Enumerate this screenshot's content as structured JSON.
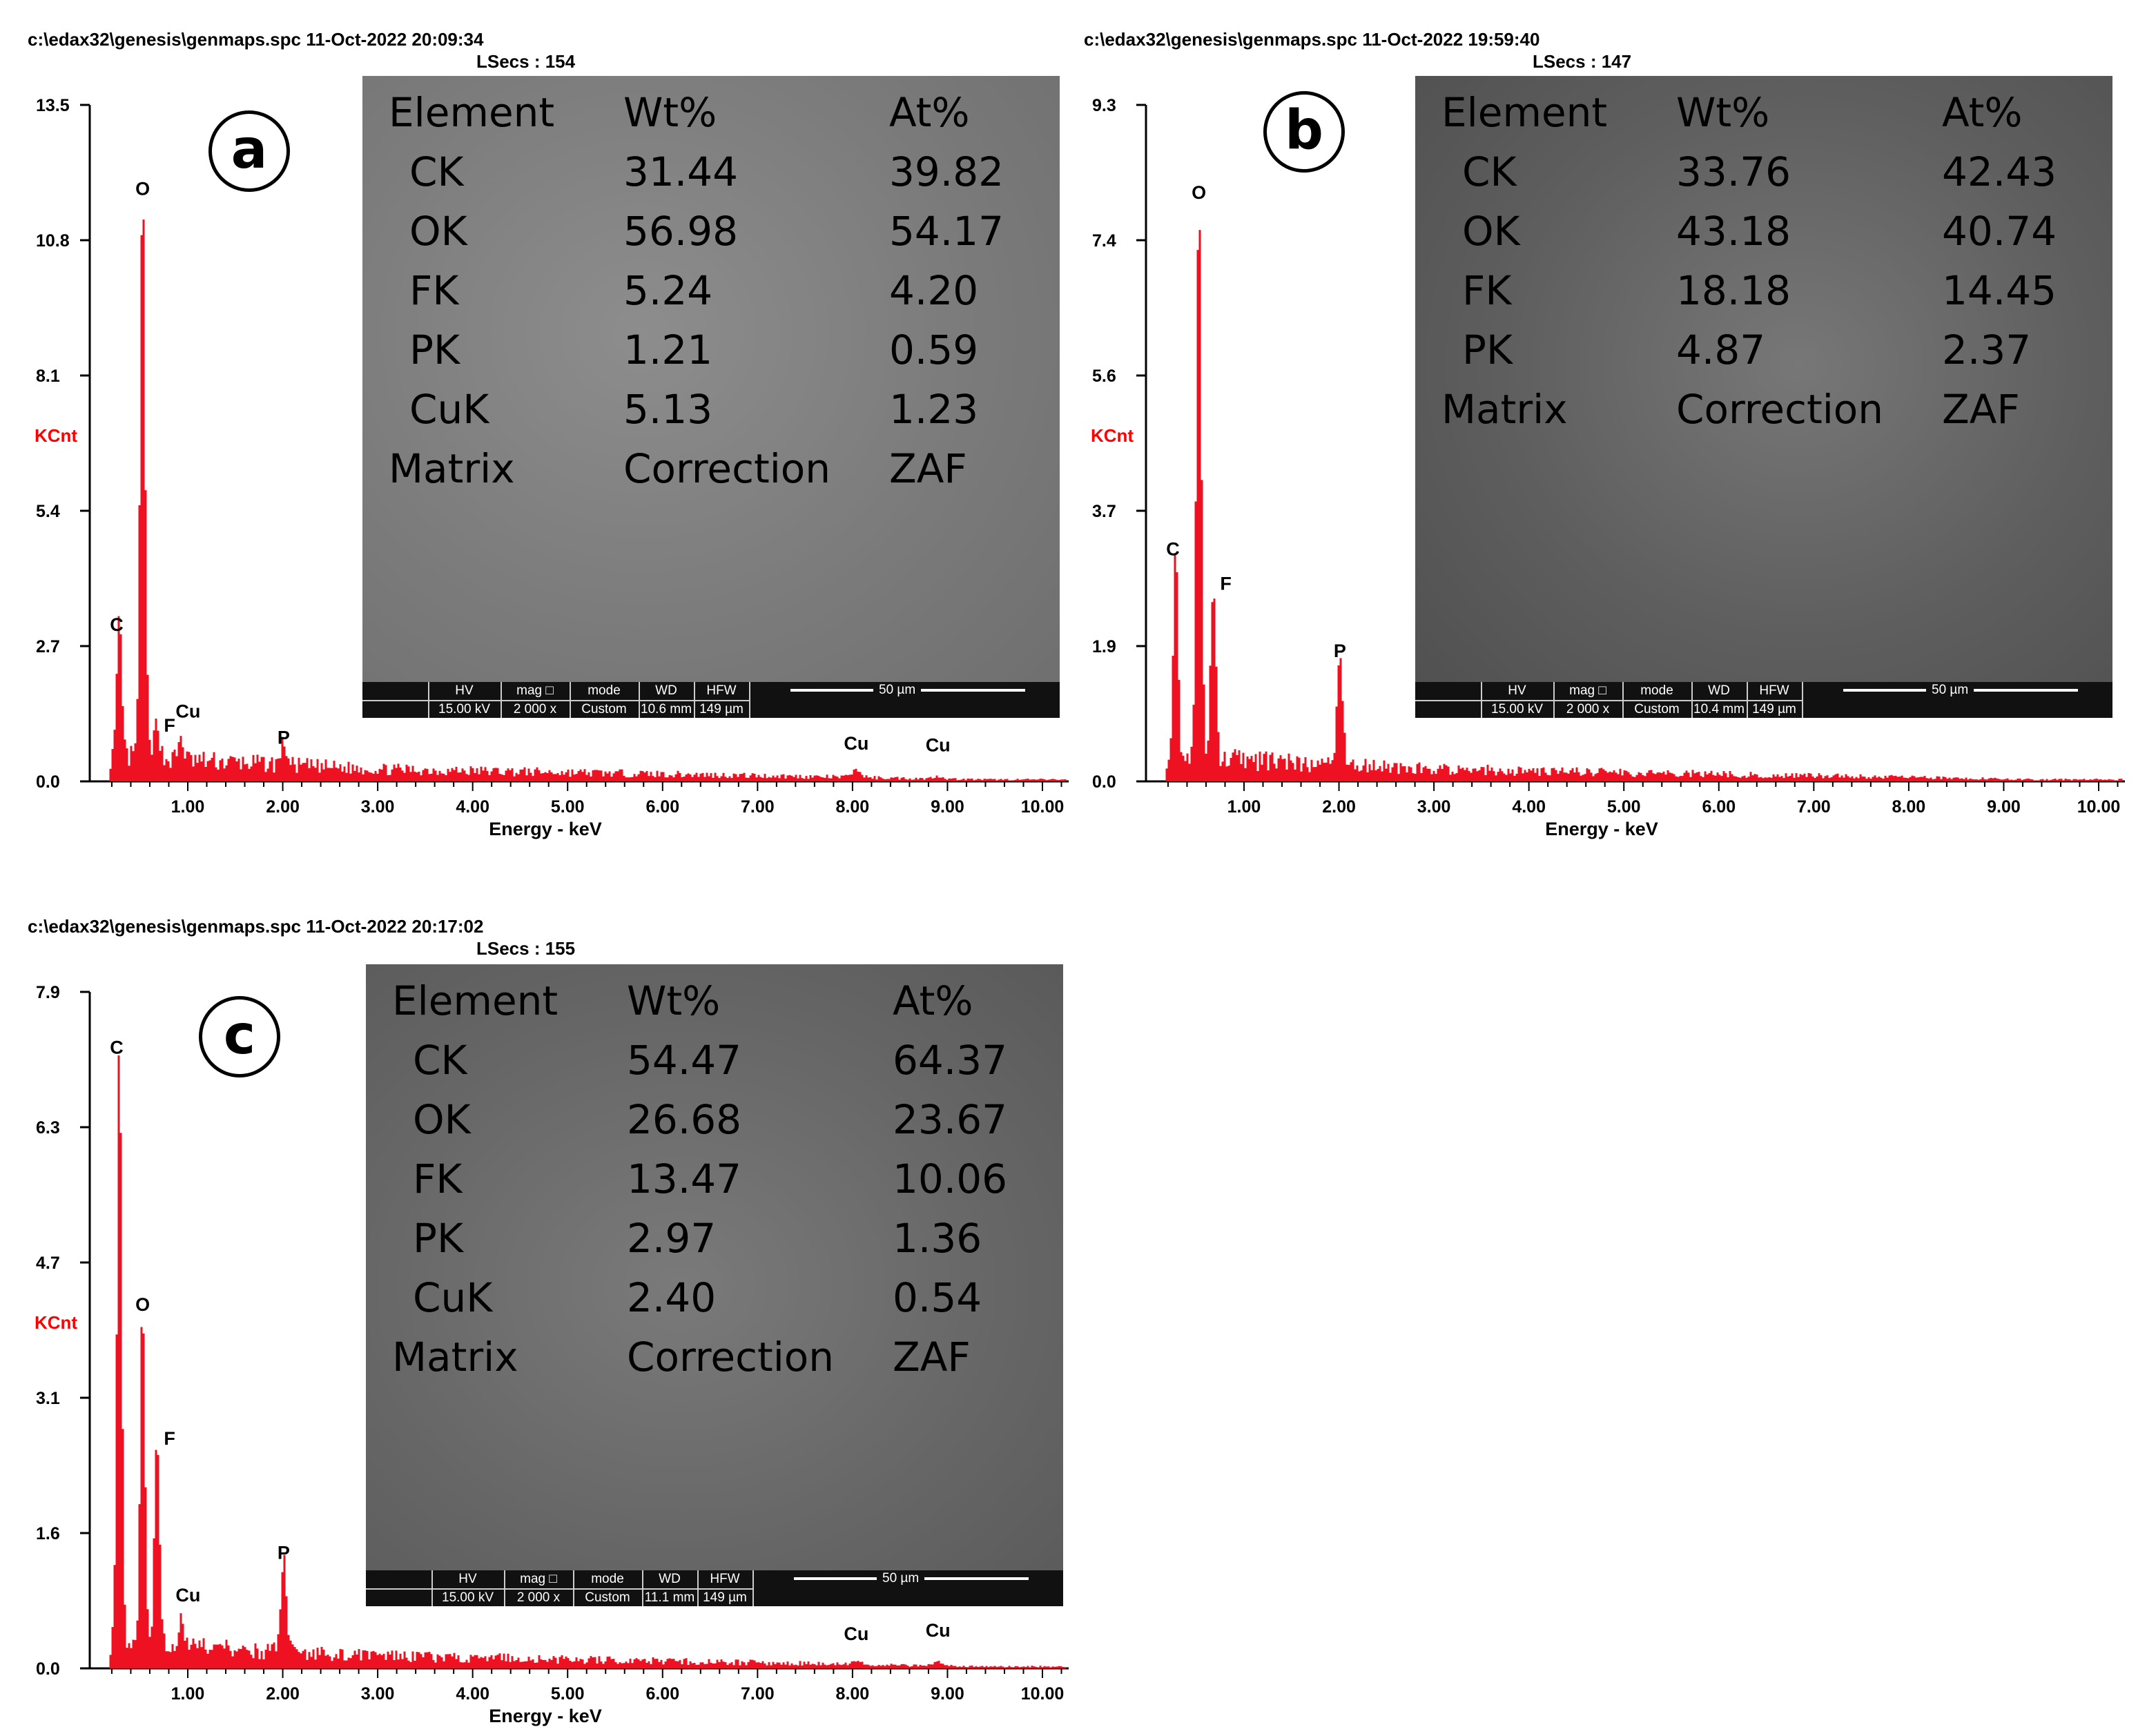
{
  "chart_data": [
    {
      "type": "bar",
      "panel": "a",
      "header_path": "c:\\edax32\\genesis\\genmaps.spc  11-Oct-2022 20:09:34",
      "header_lsecs": "LSecs :  154",
      "ylabel": "KCnt",
      "xlabel": "Energy - keV",
      "yticks": [
        "0.0",
        "2.7",
        "5.4",
        "8.1",
        "10.8",
        "13.5"
      ],
      "ylim": [
        0,
        13.5
      ],
      "xticks": [
        "1.00",
        "2.00",
        "3.00",
        "4.00",
        "5.00",
        "6.00",
        "7.00",
        "8.00",
        "9.00",
        "10.00"
      ],
      "xlim": [
        0,
        10.4
      ],
      "peaks": [
        {
          "label": "C",
          "energy": 0.28,
          "kcnt": 2.7
        },
        {
          "label": "O",
          "energy": 0.525,
          "kcnt": 11.4
        },
        {
          "label": "F",
          "energy": 0.677,
          "kcnt": 0.8
        },
        {
          "label": "Cu",
          "energy": 0.93,
          "kcnt": 0.45
        },
        {
          "label": "P",
          "energy": 2.01,
          "kcnt": 0.45
        },
        {
          "label": "Cu",
          "energy": 8.04,
          "kcnt": 0.15
        },
        {
          "label": "Cu",
          "energy": 8.9,
          "kcnt": 0.05
        }
      ],
      "sem_label": "a",
      "table": {
        "header": [
          "Element",
          "Wt%",
          "At%"
        ],
        "rows": [
          [
            "CK",
            "31.44",
            "39.82"
          ],
          [
            "OK",
            "56.98",
            "54.17"
          ],
          [
            "FK",
            "5.24",
            "4.20"
          ],
          [
            "PK",
            "1.21",
            "0.59"
          ],
          [
            "CuK",
            "5.13",
            "1.23"
          ]
        ],
        "footer": [
          "Matrix",
          "Correction",
          "ZAF"
        ]
      },
      "scalebar": {
        "hv_h": "HV",
        "hv": "15.00 kV",
        "mag_h": "mag □",
        "mag": "2 000 x",
        "mode_h": "mode",
        "mode": "Custom",
        "wd_h": "WD",
        "wd": "10.6 mm",
        "hfw_h": "HFW",
        "hfw": "149 µm",
        "scale": "50 µm"
      }
    },
    {
      "type": "bar",
      "panel": "b",
      "header_path": "c:\\edax32\\genesis\\genmaps.spc  11-Oct-2022 19:59:40",
      "header_lsecs": "LSecs :  147",
      "ylabel": "KCnt",
      "xlabel": "Energy - keV",
      "yticks": [
        "0.0",
        "1.9",
        "3.7",
        "5.6",
        "7.4",
        "9.3"
      ],
      "ylim": [
        0,
        9.3
      ],
      "xticks": [
        "1.00",
        "2.00",
        "3.00",
        "4.00",
        "5.00",
        "6.00",
        "7.00",
        "8.00",
        "9.00",
        "10.00"
      ],
      "xlim": [
        0,
        10.4
      ],
      "peaks": [
        {
          "label": "C",
          "energy": 0.28,
          "kcnt": 2.9
        },
        {
          "label": "O",
          "energy": 0.525,
          "kcnt": 7.8
        },
        {
          "label": "F",
          "energy": 0.677,
          "kcnt": 2.5
        },
        {
          "label": "P",
          "energy": 2.01,
          "kcnt": 1.5
        }
      ],
      "sem_label": "b",
      "table": {
        "header": [
          "Element",
          "Wt%",
          "At%"
        ],
        "rows": [
          [
            "CK",
            "33.76",
            "42.43"
          ],
          [
            "OK",
            "43.18",
            "40.74"
          ],
          [
            "FK",
            "18.18",
            "14.45"
          ],
          [
            "PK",
            "4.87",
            "2.37"
          ]
        ],
        "footer": [
          "Matrix",
          "Correction",
          "ZAF"
        ]
      },
      "scalebar": {
        "hv_h": "HV",
        "hv": "15.00 kV",
        "mag_h": "mag □",
        "mag": "2 000 x",
        "mode_h": "mode",
        "mode": "Custom",
        "wd_h": "WD",
        "wd": "10.4 mm",
        "hfw_h": "HFW",
        "hfw": "149 µm",
        "scale": "50 µm"
      }
    },
    {
      "type": "bar",
      "panel": "c",
      "header_path": "c:\\edax32\\genesis\\genmaps.spc  11-Oct-2022 20:17:02",
      "header_lsecs": "LSecs :  155",
      "ylabel": "KCnt",
      "xlabel": "Energy - keV",
      "yticks": [
        "0.0",
        "1.6",
        "3.1",
        "4.7",
        "6.3",
        "7.9"
      ],
      "ylim": [
        0,
        7.9
      ],
      "xticks": [
        "1.00",
        "2.00",
        "3.00",
        "4.00",
        "5.00",
        "6.00",
        "7.00",
        "8.00",
        "9.00",
        "10.00"
      ],
      "xlim": [
        0,
        10.4
      ],
      "peaks": [
        {
          "label": "C",
          "energy": 0.28,
          "kcnt": 7.0
        },
        {
          "label": "O",
          "energy": 0.525,
          "kcnt": 4.0
        },
        {
          "label": "F",
          "energy": 0.677,
          "kcnt": 2.5
        },
        {
          "label": "Cu",
          "energy": 0.93,
          "kcnt": 0.3
        },
        {
          "label": "P",
          "energy": 2.01,
          "kcnt": 1.1
        },
        {
          "label": "Cu",
          "energy": 8.04,
          "kcnt": 0.05
        },
        {
          "label": "Cu",
          "energy": 8.9,
          "kcnt": 0.05
        }
      ],
      "sem_label": "c",
      "table": {
        "header": [
          "Element",
          "Wt%",
          "At%"
        ],
        "rows": [
          [
            "CK",
            "54.47",
            "64.37"
          ],
          [
            "OK",
            "26.68",
            "23.67"
          ],
          [
            "FK",
            "13.47",
            "10.06"
          ],
          [
            "PK",
            "2.97",
            "1.36"
          ],
          [
            "CuK",
            "2.40",
            "0.54"
          ]
        ],
        "footer": [
          "Matrix",
          "Correction",
          "ZAF"
        ]
      },
      "scalebar": {
        "hv_h": "HV",
        "hv": "15.00 kV",
        "mag_h": "mag □",
        "mag": "2 000 x",
        "mode_h": "mode",
        "mode": "Custom",
        "wd_h": "WD",
        "wd": "11.1 mm",
        "hfw_h": "HFW",
        "hfw": "149 µm",
        "scale": "50 µm"
      }
    }
  ],
  "colors": {
    "spectrum": "#ee1122",
    "ylabel": "#ff0000"
  }
}
